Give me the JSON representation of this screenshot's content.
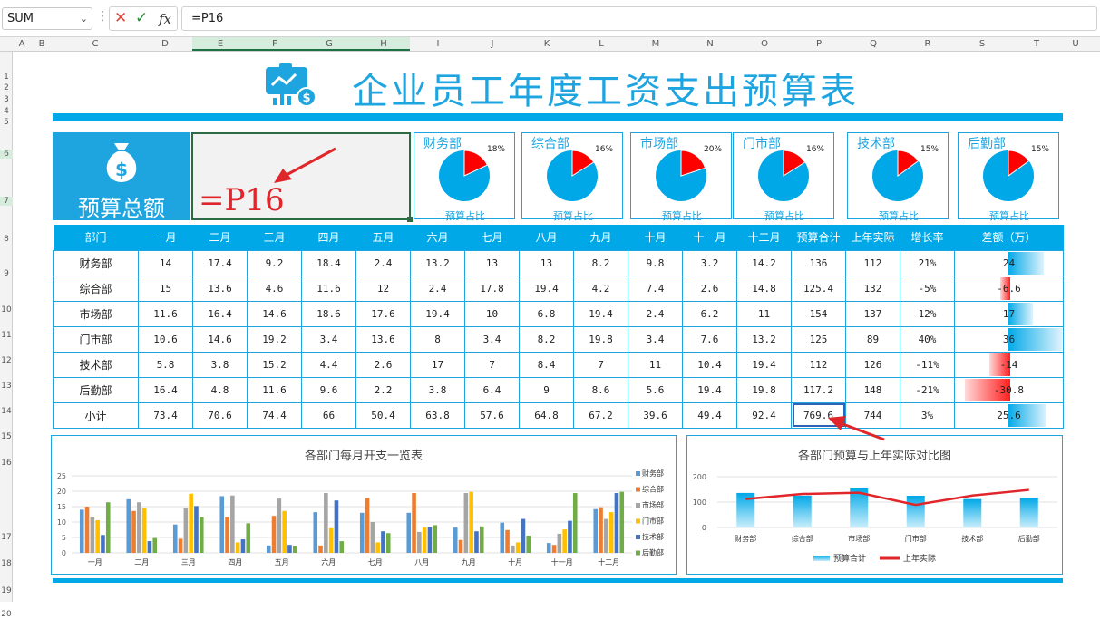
{
  "formula_bar": {
    "name_box": "SUM",
    "formula": "=P16"
  },
  "columns": [
    "A",
    "B",
    "C",
    "D",
    "E",
    "F",
    "G",
    "H",
    "I",
    "J",
    "K",
    "L",
    "M",
    "N",
    "O",
    "P",
    "Q",
    "R",
    "S",
    "T",
    "U"
  ],
  "rows": [
    "1",
    "2",
    "3",
    "4",
    "5",
    "6",
    "7",
    "8",
    "9",
    "10",
    "11",
    "12",
    "13",
    "14",
    "15",
    "16",
    "17",
    "18",
    "19",
    "20"
  ],
  "dashboard": {
    "title": "企业员工年度工资支出预算表",
    "total_label": "预算总额",
    "total_value": "=P16",
    "pies": [
      {
        "dept": "财务部",
        "pct_label": "18%",
        "pct": 18,
        "caption": "预算占比"
      },
      {
        "dept": "综合部",
        "pct_label": "16%",
        "pct": 16,
        "caption": "预算占比"
      },
      {
        "dept": "市场部",
        "pct_label": "20%",
        "pct": 20,
        "caption": "预算占比"
      },
      {
        "dept": "门市部",
        "pct_label": "16%",
        "pct": 16,
        "caption": "预算占比"
      },
      {
        "dept": "技术部",
        "pct_label": "15%",
        "pct": 15,
        "caption": "预算占比"
      },
      {
        "dept": "后勤部",
        "pct_label": "15%",
        "pct": 15,
        "caption": "预算占比"
      }
    ],
    "colors": {
      "accent": "#00a8e8",
      "pie_main": "#00a8e8",
      "pie_slice": "#ff0000",
      "title": "#1ea5e0",
      "negative": "#ff1e1e"
    }
  },
  "table": {
    "headers": [
      "部门",
      "一月",
      "二月",
      "三月",
      "四月",
      "五月",
      "六月",
      "七月",
      "八月",
      "九月",
      "十月",
      "十一月",
      "十二月",
      "预算合计",
      "上年实际",
      "增长率",
      "差额（万）"
    ],
    "rows": [
      [
        "财务部",
        "14",
        "17.4",
        "9.2",
        "18.4",
        "2.4",
        "13.2",
        "13",
        "13",
        "8.2",
        "9.8",
        "3.2",
        "14.2",
        "136",
        "112",
        "21%",
        "24"
      ],
      [
        "综合部",
        "15",
        "13.6",
        "4.6",
        "11.6",
        "12",
        "2.4",
        "17.8",
        "19.4",
        "4.2",
        "7.4",
        "2.6",
        "14.8",
        "125.4",
        "132",
        "-5%",
        "-6.6"
      ],
      [
        "市场部",
        "11.6",
        "16.4",
        "14.6",
        "18.6",
        "17.6",
        "19.4",
        "10",
        "6.8",
        "19.4",
        "2.4",
        "6.2",
        "11",
        "154",
        "137",
        "12%",
        "17"
      ],
      [
        "门市部",
        "10.6",
        "14.6",
        "19.2",
        "3.4",
        "13.6",
        "8",
        "3.4",
        "8.2",
        "19.8",
        "3.4",
        "7.6",
        "13.2",
        "125",
        "89",
        "40%",
        "36"
      ],
      [
        "技术部",
        "5.8",
        "3.8",
        "15.2",
        "4.4",
        "2.6",
        "17",
        "7",
        "8.4",
        "7",
        "11",
        "10.4",
        "19.4",
        "112",
        "126",
        "-11%",
        "-14"
      ],
      [
        "后勤部",
        "16.4",
        "4.8",
        "11.6",
        "9.6",
        "2.2",
        "3.8",
        "6.4",
        "9",
        "8.6",
        "5.6",
        "19.4",
        "19.8",
        "117.2",
        "148",
        "-21%",
        "-30.8"
      ],
      [
        "小计",
        "73.4",
        "70.6",
        "74.4",
        "66",
        "50.4",
        "63.8",
        "57.6",
        "64.8",
        "67.2",
        "39.6",
        "49.4",
        "92.4",
        "769.6",
        "744",
        "3%",
        "25.6"
      ]
    ],
    "diff_values": [
      24,
      -6.6,
      17,
      36,
      -14,
      -30.8,
      25.6
    ]
  },
  "chart_data": [
    {
      "type": "bar",
      "title": "各部门每月开支一览表",
      "categories": [
        "一月",
        "二月",
        "三月",
        "四月",
        "五月",
        "六月",
        "七月",
        "八月",
        "九月",
        "十月",
        "十一月",
        "十二月"
      ],
      "series": [
        {
          "name": "财务部",
          "values": [
            14,
            17.4,
            9.2,
            18.4,
            2.4,
            13.2,
            13,
            13,
            8.2,
            9.8,
            3.2,
            14.2
          ],
          "color": "#5b9bd5"
        },
        {
          "name": "综合部",
          "values": [
            15,
            13.6,
            4.6,
            11.6,
            12,
            2.4,
            17.8,
            19.4,
            4.2,
            7.4,
            2.6,
            14.8
          ],
          "color": "#ed7d31"
        },
        {
          "name": "市场部",
          "values": [
            11.6,
            16.4,
            14.6,
            18.6,
            17.6,
            19.4,
            10,
            6.8,
            19.4,
            2.4,
            6.2,
            11
          ],
          "color": "#a5a5a5"
        },
        {
          "name": "门市部",
          "values": [
            10.6,
            14.6,
            19.2,
            3.4,
            13.6,
            8,
            3.4,
            8.2,
            19.8,
            3.4,
            7.6,
            13.2
          ],
          "color": "#ffc000"
        },
        {
          "name": "技术部",
          "values": [
            5.8,
            3.8,
            15.2,
            4.4,
            2.6,
            17,
            7,
            8.4,
            7,
            11,
            10.4,
            19.4
          ],
          "color": "#4472c4"
        },
        {
          "name": "后勤部",
          "values": [
            16.4,
            4.8,
            11.6,
            9.6,
            2.2,
            3.8,
            6.4,
            9,
            8.6,
            5.6,
            19.4,
            19.8
          ],
          "color": "#70ad47"
        }
      ],
      "yticks": [
        "0",
        "5",
        "10",
        "15",
        "20",
        "25"
      ],
      "ylim": [
        0,
        25
      ],
      "legend": "right"
    },
    {
      "type": "bar+line",
      "title": "各部门预算与上年实际对比图",
      "categories": [
        "财务部",
        "综合部",
        "市场部",
        "门市部",
        "技术部",
        "后勤部"
      ],
      "series": [
        {
          "name": "预算合计",
          "type": "bar",
          "values": [
            136,
            125.4,
            154,
            125,
            112,
            117.2
          ],
          "color": "#00a8e8"
        },
        {
          "name": "上年实际",
          "type": "line",
          "values": [
            112,
            132,
            137,
            89,
            126,
            148
          ],
          "color": "#e0262a"
        }
      ],
      "yticks": [
        "0",
        "100",
        "200"
      ],
      "ylim": [
        0,
        200
      ],
      "legend": "bottom"
    }
  ]
}
